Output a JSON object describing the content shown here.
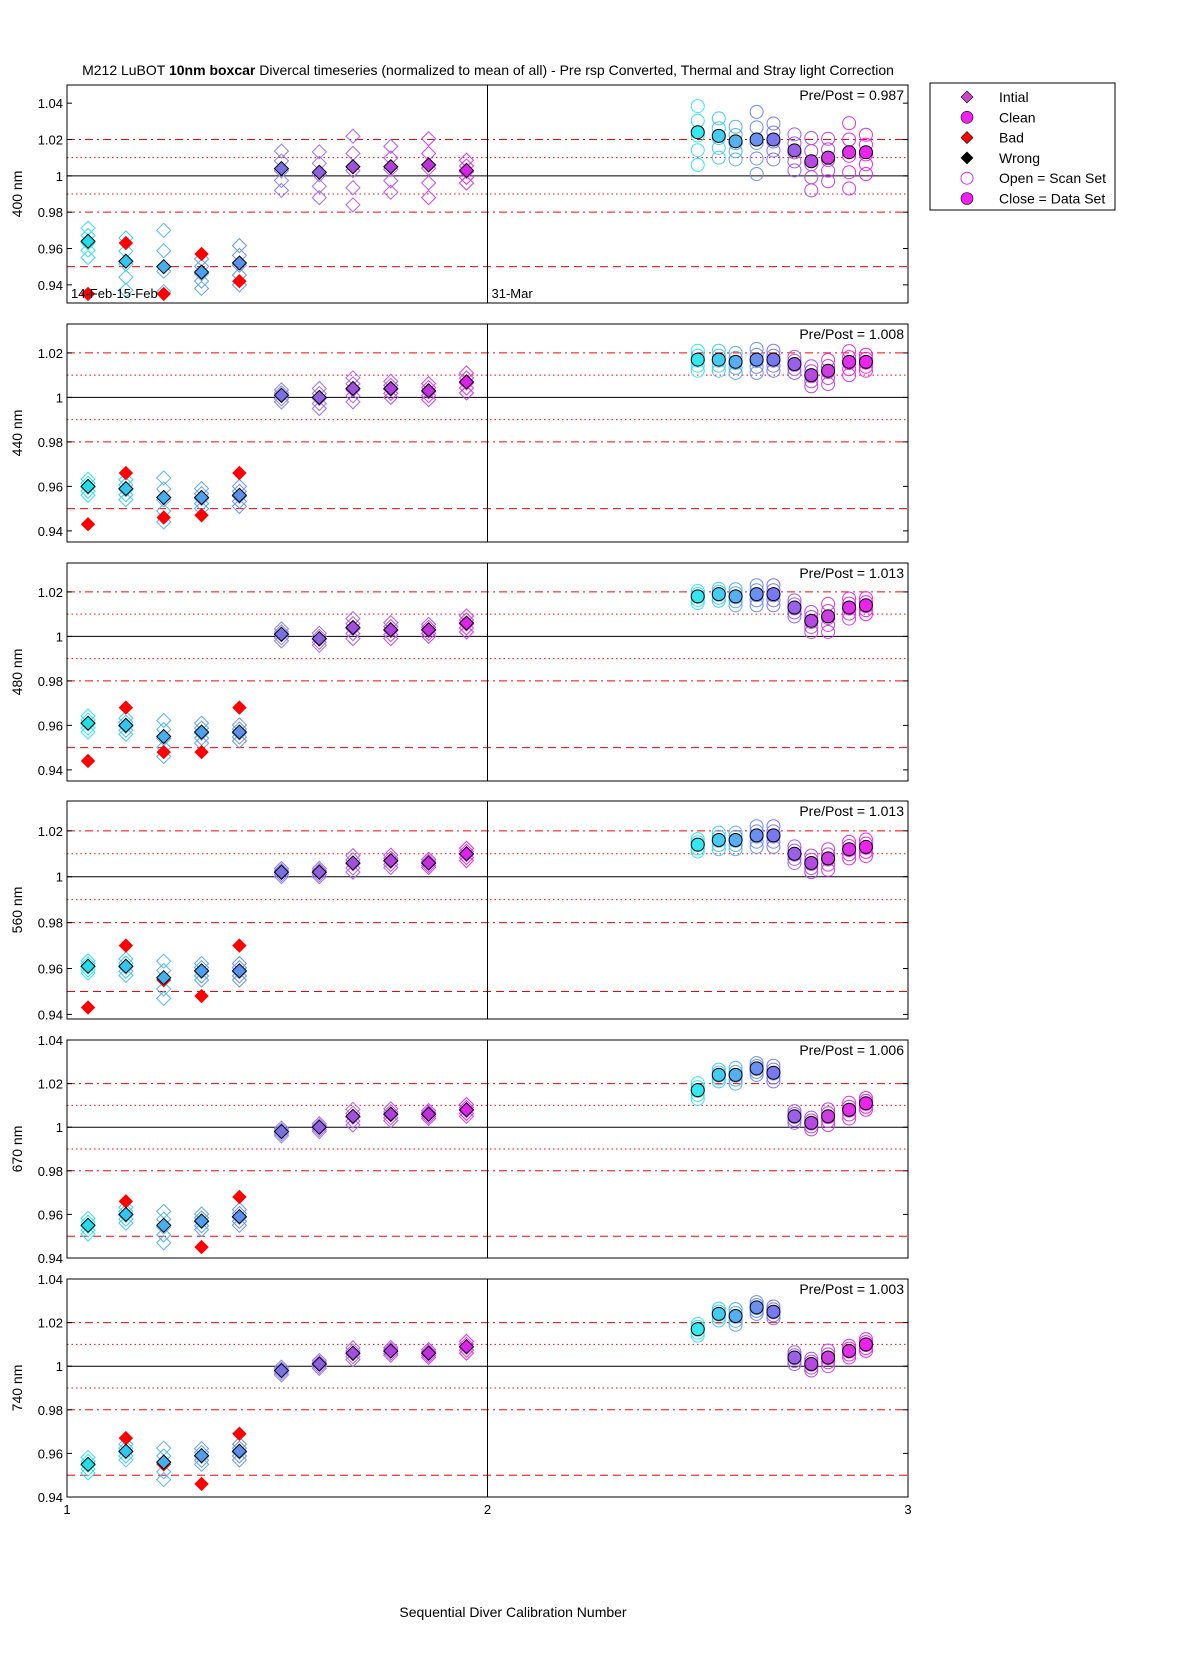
{
  "chart_data": {
    "type": "scatter",
    "title": {
      "prefix": "M212  LuBOT ",
      "bold": "10nm boxcar",
      "suffix": " Divercal timeseries (normalized to mean of all) - Pre rsp Converted, Thermal and Stray light Correction"
    },
    "xlabel": "Sequential Diver Calibration Number",
    "xlim": [
      1,
      3
    ],
    "xticks": [
      "1",
      "2",
      "3"
    ],
    "grid": false,
    "legend": {
      "position": "top-right outside",
      "entries": [
        {
          "label": "Intial",
          "marker": "diamond",
          "color": "#cc44cc"
        },
        {
          "label": "Clean",
          "marker": "circle",
          "color": "#ee22ee"
        },
        {
          "label": "Bad",
          "marker": "diamond",
          "color": "#ff0000"
        },
        {
          "label": "Wrong",
          "marker": "diamond",
          "color": "#000000"
        },
        {
          "label": "Open = Scan Set",
          "marker": "open-circle",
          "color": "#ee22ee"
        },
        {
          "label": "Close = Data Set",
          "marker": "circle",
          "color": "#ee22ee"
        }
      ]
    },
    "reference_lines": {
      "solid": 1.0,
      "dotted": [
        0.99,
        1.01
      ],
      "dashdot": [
        0.98,
        1.02
      ],
      "dashed": [
        0.95,
        1.05
      ]
    },
    "date_annotations": [
      {
        "text": "14-Feb-15-Feb",
        "x": 1.0
      },
      {
        "text": "31-Mar",
        "x": 2.0
      }
    ],
    "panels": [
      {
        "ylabel": "400 nm",
        "ylim": [
          0.93,
          1.05
        ],
        "yticks": [
          "0.94",
          "0.96",
          "0.98",
          "1",
          "1.02",
          "1.04"
        ],
        "prepost": "Pre/Post = 0.987",
        "show_dates": true,
        "bad": [
          [
            1.05,
            0.935
          ],
          [
            1.14,
            0.963
          ],
          [
            1.23,
            0.935
          ],
          [
            1.32,
            0.957
          ],
          [
            1.41,
            0.942
          ]
        ],
        "feb_data": [
          [
            1.05,
            0.964
          ],
          [
            1.14,
            0.953
          ],
          [
            1.23,
            0.95
          ],
          [
            1.32,
            0.947
          ],
          [
            1.41,
            0.952
          ],
          [
            1.51,
            1.004
          ],
          [
            1.6,
            1.002
          ],
          [
            1.68,
            1.005
          ],
          [
            1.77,
            1.005
          ],
          [
            1.86,
            1.006
          ],
          [
            1.95,
            1.003
          ]
        ],
        "feb_scatter": [
          0.009,
          0.016,
          0.025,
          0.009,
          0.012,
          0.012,
          0.014,
          0.021,
          0.014,
          0.018,
          0.007
        ],
        "mar_data": [
          [
            2.5,
            1.024
          ],
          [
            2.55,
            1.022
          ],
          [
            2.59,
            1.019
          ],
          [
            2.64,
            1.02
          ],
          [
            2.68,
            1.02
          ],
          [
            2.73,
            1.014
          ],
          [
            2.77,
            1.008
          ],
          [
            2.81,
            1.01
          ],
          [
            2.86,
            1.013
          ],
          [
            2.9,
            1.013
          ]
        ],
        "mar_scatter": [
          0.018,
          0.012,
          0.01,
          0.019,
          0.011,
          0.011,
          0.016,
          0.013,
          0.02,
          0.012
        ]
      },
      {
        "ylabel": "440 nm",
        "ylim": [
          0.935,
          1.033
        ],
        "yticks": [
          "0.94",
          "0.96",
          "0.98",
          "1",
          "1.02"
        ],
        "prepost": "Pre/Post = 1.008",
        "show_dates": false,
        "bad": [
          [
            1.05,
            0.943
          ],
          [
            1.14,
            0.966
          ],
          [
            1.23,
            0.946
          ],
          [
            1.32,
            0.947
          ],
          [
            1.41,
            0.966
          ]
        ],
        "feb_data": [
          [
            1.05,
            0.96
          ],
          [
            1.14,
            0.959
          ],
          [
            1.23,
            0.955
          ],
          [
            1.32,
            0.955
          ],
          [
            1.41,
            0.956
          ],
          [
            1.51,
            1.001
          ],
          [
            1.6,
            1.0
          ],
          [
            1.68,
            1.004
          ],
          [
            1.77,
            1.004
          ],
          [
            1.86,
            1.003
          ],
          [
            1.95,
            1.007
          ]
        ],
        "feb_scatter": [
          0.004,
          0.005,
          0.011,
          0.005,
          0.005,
          0.003,
          0.005,
          0.006,
          0.004,
          0.004,
          0.005
        ],
        "mar_data": [
          [
            2.5,
            1.017
          ],
          [
            2.55,
            1.017
          ],
          [
            2.59,
            1.016
          ],
          [
            2.64,
            1.017
          ],
          [
            2.68,
            1.017
          ],
          [
            2.73,
            1.015
          ],
          [
            2.77,
            1.01
          ],
          [
            2.81,
            1.012
          ],
          [
            2.86,
            1.016
          ],
          [
            2.9,
            1.016
          ]
        ],
        "mar_scatter": [
          0.005,
          0.005,
          0.005,
          0.006,
          0.005,
          0.004,
          0.005,
          0.006,
          0.006,
          0.004
        ]
      },
      {
        "ylabel": "480 nm",
        "ylim": [
          0.935,
          1.033
        ],
        "yticks": [
          "0.94",
          "0.96",
          "0.98",
          "1",
          "1.02"
        ],
        "prepost": "Pre/Post = 1.013",
        "show_dates": false,
        "bad": [
          [
            1.05,
            0.944
          ],
          [
            1.14,
            0.968
          ],
          [
            1.23,
            0.948
          ],
          [
            1.32,
            0.948
          ],
          [
            1.41,
            0.968
          ]
        ],
        "feb_data": [
          [
            1.05,
            0.961
          ],
          [
            1.14,
            0.96
          ],
          [
            1.23,
            0.955
          ],
          [
            1.32,
            0.957
          ],
          [
            1.41,
            0.957
          ],
          [
            1.51,
            1.001
          ],
          [
            1.6,
            0.999
          ],
          [
            1.68,
            1.004
          ],
          [
            1.77,
            1.003
          ],
          [
            1.86,
            1.003
          ],
          [
            1.95,
            1.006
          ]
        ],
        "feb_scatter": [
          0.004,
          0.004,
          0.009,
          0.005,
          0.004,
          0.003,
          0.003,
          0.005,
          0.004,
          0.003,
          0.004
        ],
        "mar_data": [
          [
            2.5,
            1.018
          ],
          [
            2.55,
            1.019
          ],
          [
            2.59,
            1.018
          ],
          [
            2.64,
            1.019
          ],
          [
            2.68,
            1.019
          ],
          [
            2.73,
            1.013
          ],
          [
            2.77,
            1.007
          ],
          [
            2.81,
            1.009
          ],
          [
            2.86,
            1.013
          ],
          [
            2.9,
            1.014
          ]
        ],
        "mar_scatter": [
          0.003,
          0.003,
          0.004,
          0.005,
          0.005,
          0.004,
          0.005,
          0.007,
          0.005,
          0.004
        ]
      },
      {
        "ylabel": "560 nm",
        "ylim": [
          0.938,
          1.033
        ],
        "yticks": [
          "0.94",
          "0.96",
          "0.98",
          "1",
          "1.02"
        ],
        "prepost": "Pre/Post = 1.013",
        "show_dates": false,
        "bad": [
          [
            1.05,
            0.943
          ],
          [
            1.14,
            0.97
          ],
          [
            1.23,
            0.955
          ],
          [
            1.32,
            0.948
          ],
          [
            1.41,
            0.97
          ]
        ],
        "feb_data": [
          [
            1.05,
            0.961
          ],
          [
            1.14,
            0.961
          ],
          [
            1.23,
            0.956
          ],
          [
            1.32,
            0.959
          ],
          [
            1.41,
            0.959
          ],
          [
            1.51,
            1.002
          ],
          [
            1.6,
            1.002
          ],
          [
            1.68,
            1.006
          ],
          [
            1.77,
            1.007
          ],
          [
            1.86,
            1.006
          ],
          [
            1.95,
            1.01
          ]
        ],
        "feb_scatter": [
          0.003,
          0.004,
          0.009,
          0.004,
          0.004,
          0.002,
          0.002,
          0.004,
          0.003,
          0.002,
          0.003
        ],
        "mar_data": [
          [
            2.5,
            1.014
          ],
          [
            2.55,
            1.016
          ],
          [
            2.59,
            1.016
          ],
          [
            2.64,
            1.018
          ],
          [
            2.68,
            1.018
          ],
          [
            2.73,
            1.01
          ],
          [
            2.77,
            1.006
          ],
          [
            2.81,
            1.008
          ],
          [
            2.86,
            1.012
          ],
          [
            2.9,
            1.013
          ]
        ],
        "mar_scatter": [
          0.003,
          0.004,
          0.004,
          0.005,
          0.005,
          0.004,
          0.004,
          0.005,
          0.004,
          0.004
        ]
      },
      {
        "ylabel": "670 nm",
        "ylim": [
          0.94,
          1.04
        ],
        "yticks": [
          "0.94",
          "0.96",
          "0.98",
          "1",
          "1.02",
          "1.04"
        ],
        "prepost": "Pre/Post = 1.006",
        "show_dates": false,
        "bad": [
          [
            1.05,
            0.955
          ],
          [
            1.14,
            0.966
          ],
          [
            1.23,
            0.955
          ],
          [
            1.32,
            0.945
          ],
          [
            1.41,
            0.968
          ]
        ],
        "feb_data": [
          [
            1.05,
            0.955
          ],
          [
            1.14,
            0.96
          ],
          [
            1.23,
            0.955
          ],
          [
            1.32,
            0.957
          ],
          [
            1.41,
            0.959
          ],
          [
            1.51,
            0.998
          ],
          [
            1.6,
            1.0
          ],
          [
            1.68,
            1.005
          ],
          [
            1.77,
            1.006
          ],
          [
            1.86,
            1.006
          ],
          [
            1.95,
            1.008
          ]
        ],
        "feb_scatter": [
          0.004,
          0.004,
          0.008,
          0.004,
          0.004,
          0.002,
          0.002,
          0.004,
          0.003,
          0.002,
          0.003
        ],
        "mar_data": [
          [
            2.5,
            1.017
          ],
          [
            2.55,
            1.024
          ],
          [
            2.59,
            1.024
          ],
          [
            2.64,
            1.027
          ],
          [
            2.68,
            1.025
          ],
          [
            2.73,
            1.005
          ],
          [
            2.77,
            1.002
          ],
          [
            2.81,
            1.005
          ],
          [
            2.86,
            1.008
          ],
          [
            2.9,
            1.011
          ]
        ],
        "mar_scatter": [
          0.004,
          0.003,
          0.004,
          0.003,
          0.004,
          0.003,
          0.003,
          0.004,
          0.004,
          0.003
        ]
      },
      {
        "ylabel": "740 nm",
        "ylim": [
          0.94,
          1.04
        ],
        "yticks": [
          "0.94",
          "0.96",
          "0.98",
          "1",
          "1.02",
          "1.04"
        ],
        "prepost": "Pre/Post = 1.003",
        "show_dates": false,
        "bad": [
          [
            1.05,
            0.955
          ],
          [
            1.14,
            0.967
          ],
          [
            1.23,
            0.955
          ],
          [
            1.32,
            0.946
          ],
          [
            1.41,
            0.969
          ]
        ],
        "feb_data": [
          [
            1.05,
            0.955
          ],
          [
            1.14,
            0.961
          ],
          [
            1.23,
            0.956
          ],
          [
            1.32,
            0.959
          ],
          [
            1.41,
            0.961
          ],
          [
            1.51,
            0.998
          ],
          [
            1.6,
            1.001
          ],
          [
            1.68,
            1.006
          ],
          [
            1.77,
            1.007
          ],
          [
            1.86,
            1.006
          ],
          [
            1.95,
            1.009
          ]
        ],
        "feb_scatter": [
          0.004,
          0.004,
          0.008,
          0.004,
          0.004,
          0.002,
          0.002,
          0.003,
          0.002,
          0.002,
          0.003
        ],
        "mar_data": [
          [
            2.5,
            1.017
          ],
          [
            2.55,
            1.024
          ],
          [
            2.59,
            1.023
          ],
          [
            2.64,
            1.027
          ],
          [
            2.68,
            1.025
          ],
          [
            2.73,
            1.004
          ],
          [
            2.77,
            1.001
          ],
          [
            2.81,
            1.004
          ],
          [
            2.86,
            1.007
          ],
          [
            2.9,
            1.01
          ]
        ],
        "mar_scatter": [
          0.003,
          0.003,
          0.004,
          0.003,
          0.003,
          0.003,
          0.003,
          0.004,
          0.003,
          0.003
        ]
      }
    ]
  }
}
